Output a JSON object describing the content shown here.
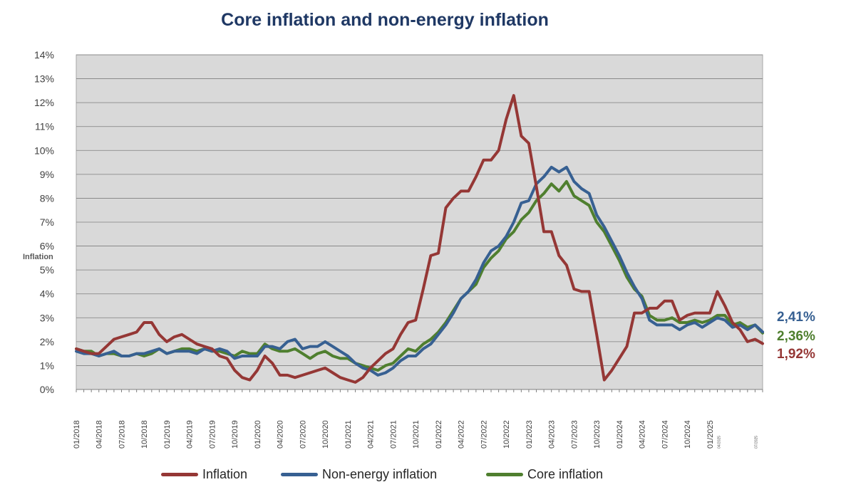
{
  "chart_data": {
    "type": "line",
    "title": "Core inflation and non-energy inflation",
    "ylabel": "Inflation",
    "ylim": [
      0,
      14
    ],
    "y_ticks": [
      "0%",
      "1%",
      "2%",
      "3%",
      "4%",
      "5%",
      "6%",
      "7%",
      "8%",
      "9%",
      "10%",
      "11%",
      "12%",
      "13%",
      "14%"
    ],
    "x_tick_labels": [
      "01/2018",
      "04/2018",
      "07/2018",
      "10/2018",
      "01/2019",
      "04/2019",
      "07/2019",
      "10/2019",
      "01/2020",
      "04/2020",
      "07/2020",
      "10/2020",
      "01/2021",
      "04/2021",
      "07/2021",
      "10/2021",
      "01/2022",
      "04/2022",
      "07/2022",
      "10/2022",
      "01/2023",
      "04/2023",
      "07/2023",
      "10/2023",
      "01/2024",
      "04/2024",
      "07/2024",
      "10/2024",
      "01/2025"
    ],
    "x_tick_small_labels": [
      "04/2025",
      "07/2025"
    ],
    "grid": true,
    "legend_position": "bottom",
    "plot_background": "#d9d9d9",
    "series": [
      {
        "name": "Inflation",
        "color": "#953735",
        "end_label": "1,92%",
        "values": [
          1.7,
          1.6,
          1.5,
          1.5,
          1.8,
          2.1,
          2.2,
          2.3,
          2.4,
          2.8,
          2.8,
          2.3,
          2.0,
          2.2,
          2.3,
          2.1,
          1.9,
          1.8,
          1.7,
          1.4,
          1.3,
          0.8,
          0.5,
          0.4,
          0.8,
          1.4,
          1.1,
          0.6,
          0.6,
          0.5,
          0.6,
          0.7,
          0.8,
          0.9,
          0.7,
          0.5,
          0.4,
          0.3,
          0.5,
          0.9,
          1.2,
          1.5,
          1.7,
          2.3,
          2.8,
          2.9,
          4.2,
          5.6,
          5.7,
          7.6,
          8.0,
          8.3,
          8.3,
          8.9,
          9.6,
          9.6,
          10.0,
          11.3,
          12.3,
          10.6,
          10.3,
          8.5,
          6.6,
          6.6,
          5.6,
          5.2,
          4.2,
          4.1,
          4.1,
          2.3,
          0.4,
          0.8,
          1.3,
          1.8,
          3.2,
          3.2,
          3.4,
          3.4,
          3.7,
          3.7,
          2.9,
          3.1,
          3.2,
          3.2,
          3.2,
          4.1,
          3.5,
          2.8,
          2.5,
          2.0,
          2.1,
          1.92
        ]
      },
      {
        "name": "Non-energy inflation",
        "color": "#376092",
        "end_label": "2,41%",
        "values": [
          1.6,
          1.5,
          1.5,
          1.4,
          1.5,
          1.6,
          1.4,
          1.4,
          1.5,
          1.5,
          1.6,
          1.7,
          1.5,
          1.6,
          1.6,
          1.6,
          1.5,
          1.7,
          1.6,
          1.7,
          1.6,
          1.3,
          1.4,
          1.4,
          1.4,
          1.8,
          1.8,
          1.7,
          2.0,
          2.1,
          1.7,
          1.8,
          1.8,
          2.0,
          1.8,
          1.6,
          1.4,
          1.1,
          0.9,
          0.8,
          0.6,
          0.7,
          0.9,
          1.2,
          1.4,
          1.4,
          1.7,
          1.9,
          2.3,
          2.7,
          3.2,
          3.8,
          4.1,
          4.6,
          5.3,
          5.8,
          6.0,
          6.4,
          7.0,
          7.8,
          7.9,
          8.6,
          8.9,
          9.3,
          9.1,
          9.3,
          8.7,
          8.4,
          8.2,
          7.3,
          6.8,
          6.2,
          5.6,
          4.9,
          4.3,
          3.8,
          2.9,
          2.7,
          2.7,
          2.7,
          2.5,
          2.7,
          2.8,
          2.6,
          2.8,
          3.0,
          2.9,
          2.6,
          2.7,
          2.5,
          2.7,
          2.41
        ]
      },
      {
        "name": "Core inflation",
        "color": "#4f7f2f",
        "end_label": "2,36%",
        "values": [
          1.7,
          1.6,
          1.6,
          1.4,
          1.5,
          1.5,
          1.4,
          1.4,
          1.5,
          1.4,
          1.5,
          1.7,
          1.5,
          1.6,
          1.7,
          1.7,
          1.6,
          1.7,
          1.6,
          1.6,
          1.5,
          1.4,
          1.6,
          1.5,
          1.5,
          1.9,
          1.7,
          1.6,
          1.6,
          1.7,
          1.5,
          1.3,
          1.5,
          1.6,
          1.4,
          1.3,
          1.3,
          1.1,
          1.0,
          0.9,
          0.8,
          1.0,
          1.1,
          1.4,
          1.7,
          1.6,
          1.9,
          2.1,
          2.4,
          2.8,
          3.3,
          3.8,
          4.1,
          4.4,
          5.1,
          5.5,
          5.8,
          6.3,
          6.6,
          7.1,
          7.4,
          7.9,
          8.2,
          8.6,
          8.3,
          8.7,
          8.1,
          7.9,
          7.7,
          7.0,
          6.6,
          6.0,
          5.4,
          4.7,
          4.2,
          3.9,
          3.1,
          2.9,
          2.9,
          3.0,
          2.8,
          2.8,
          2.9,
          2.8,
          2.9,
          3.1,
          3.1,
          2.7,
          2.8,
          2.6,
          2.7,
          2.36
        ]
      }
    ]
  }
}
